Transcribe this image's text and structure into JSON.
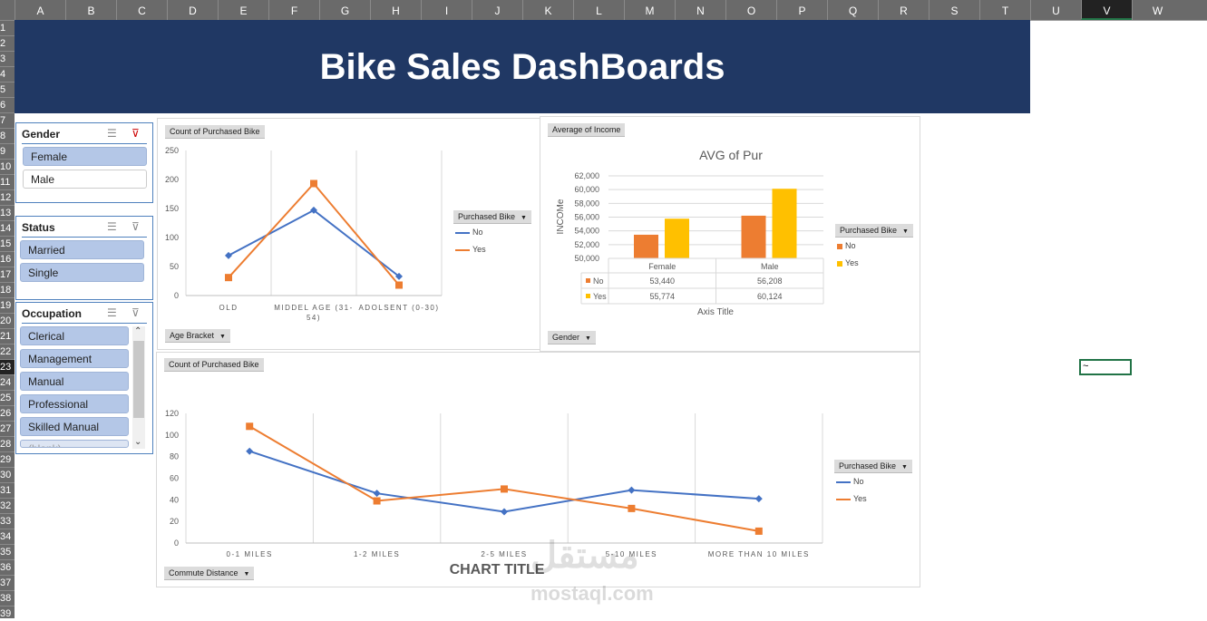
{
  "sheet": {
    "columns": [
      "A",
      "B",
      "C",
      "D",
      "E",
      "F",
      "G",
      "H",
      "I",
      "J",
      "K",
      "L",
      "M",
      "N",
      "O",
      "P",
      "Q",
      "R",
      "S",
      "T",
      "U",
      "V",
      "W"
    ],
    "selected_column": "V",
    "selected_row": 23,
    "row_count": 39,
    "active_cell_value": "~"
  },
  "title": "Bike Sales DashBoards",
  "slicers": [
    {
      "title": "Gender",
      "items": [
        {
          "label": "Female",
          "selected": true
        },
        {
          "label": "Male",
          "selected": false
        }
      ]
    },
    {
      "title": "Status",
      "items": [
        {
          "label": "Married",
          "selected": true
        },
        {
          "label": "Single",
          "selected": true
        }
      ]
    },
    {
      "title": "Occupation",
      "items": [
        {
          "label": "Clerical",
          "selected": true
        },
        {
          "label": "Management",
          "selected": true
        },
        {
          "label": "Manual",
          "selected": true
        },
        {
          "label": "Professional",
          "selected": true
        },
        {
          "label": "Skilled Manual",
          "selected": true
        },
        {
          "label": "(blank)",
          "selected": false
        }
      ]
    }
  ],
  "colors": {
    "no_line": "#4472c4",
    "yes_line": "#ed7d31",
    "no_bar": "#ed7d31",
    "yes_bar": "#ffc000",
    "banner": "#203864"
  },
  "chart_data": [
    {
      "type": "line",
      "value_button": "Count of Purchased Bike",
      "axis_button": "Age Bracket",
      "legend_title": "Purchased Bike",
      "legend": "right",
      "categories": [
        "OLD",
        "MIDDEL AGE (31-54)",
        "ADOLSENT (0-30)"
      ],
      "ylim": [
        0,
        250
      ],
      "yticks": [
        0,
        50,
        100,
        150,
        200,
        250
      ],
      "series": [
        {
          "name": "No",
          "values": [
            69,
            147,
            33
          ]
        },
        {
          "name": "Yes",
          "values": [
            31,
            193,
            18
          ]
        }
      ]
    },
    {
      "type": "bar",
      "value_button": "Average of Income",
      "axis_button": "Gender",
      "legend_title": "Purchased Bike",
      "legend": "right",
      "title": "AVG of Pur",
      "ylabel": "INCOMe",
      "xlabel": "Axis Title",
      "categories": [
        "Female",
        "Male"
      ],
      "ylim": [
        50000,
        62000
      ],
      "yticks": [
        "50,000",
        "52,000",
        "54,000",
        "56,000",
        "58,000",
        "60,000",
        "62,000"
      ],
      "series": [
        {
          "name": "No",
          "values": [
            53440,
            56208
          ],
          "labels": [
            "53,440",
            "56,208"
          ]
        },
        {
          "name": "Yes",
          "values": [
            55774,
            60124
          ],
          "labels": [
            "55,774",
            "60,124"
          ]
        }
      ]
    },
    {
      "type": "line",
      "value_button": "Count of Purchased Bike",
      "axis_button": "Commute Distance",
      "legend_title": "Purchased Bike",
      "legend": "right",
      "title": "CHART TITLE",
      "categories": [
        "0-1 MILES",
        "1-2 MILES",
        "2-5 MILES",
        "5-10 MILES",
        "MORE THAN 10 MILES"
      ],
      "ylim": [
        0,
        120
      ],
      "yticks": [
        0,
        20,
        40,
        60,
        80,
        100,
        120
      ],
      "series": [
        {
          "name": "No",
          "values": [
            85,
            46,
            29,
            49,
            41
          ]
        },
        {
          "name": "Yes",
          "values": [
            108,
            39,
            50,
            32,
            11
          ]
        }
      ]
    }
  ],
  "watermark": {
    "arabic": "مستقل",
    "latin": "mostaql.com"
  }
}
